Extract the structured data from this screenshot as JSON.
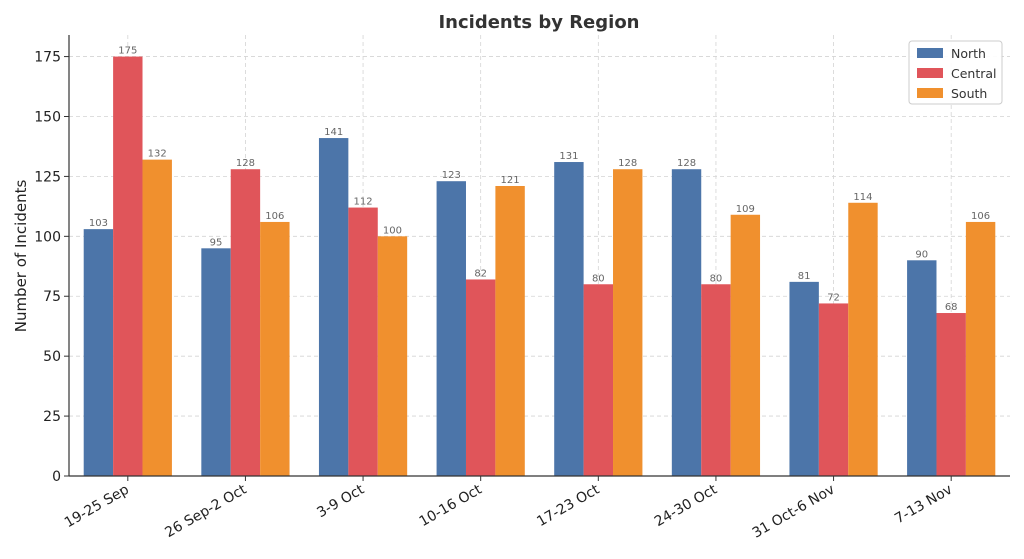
{
  "chart_data": {
    "type": "bar",
    "title": "Incidents by Region",
    "xlabel": "",
    "ylabel": "Number of Incidents",
    "ylim": [
      0,
      184
    ],
    "yticks": [
      0,
      25,
      50,
      75,
      100,
      125,
      150,
      175
    ],
    "grid": true,
    "legend_position": "top-right",
    "categories": [
      "19-25 Sep",
      "26 Sep-2 Oct",
      "3-9 Oct",
      "10-16 Oct",
      "17-23 Oct",
      "24-30 Oct",
      "31 Oct-6 Nov",
      "7-13 Nov"
    ],
    "series": [
      {
        "name": "North",
        "color": "#4c75a9",
        "values": [
          103,
          95,
          141,
          123,
          131,
          128,
          81,
          90
        ]
      },
      {
        "name": "Central",
        "color": "#e0555a",
        "values": [
          175,
          128,
          112,
          82,
          80,
          80,
          72,
          68
        ]
      },
      {
        "name": "South",
        "color": "#f0902e",
        "values": [
          132,
          106,
          100,
          121,
          128,
          109,
          114,
          106
        ]
      }
    ]
  }
}
